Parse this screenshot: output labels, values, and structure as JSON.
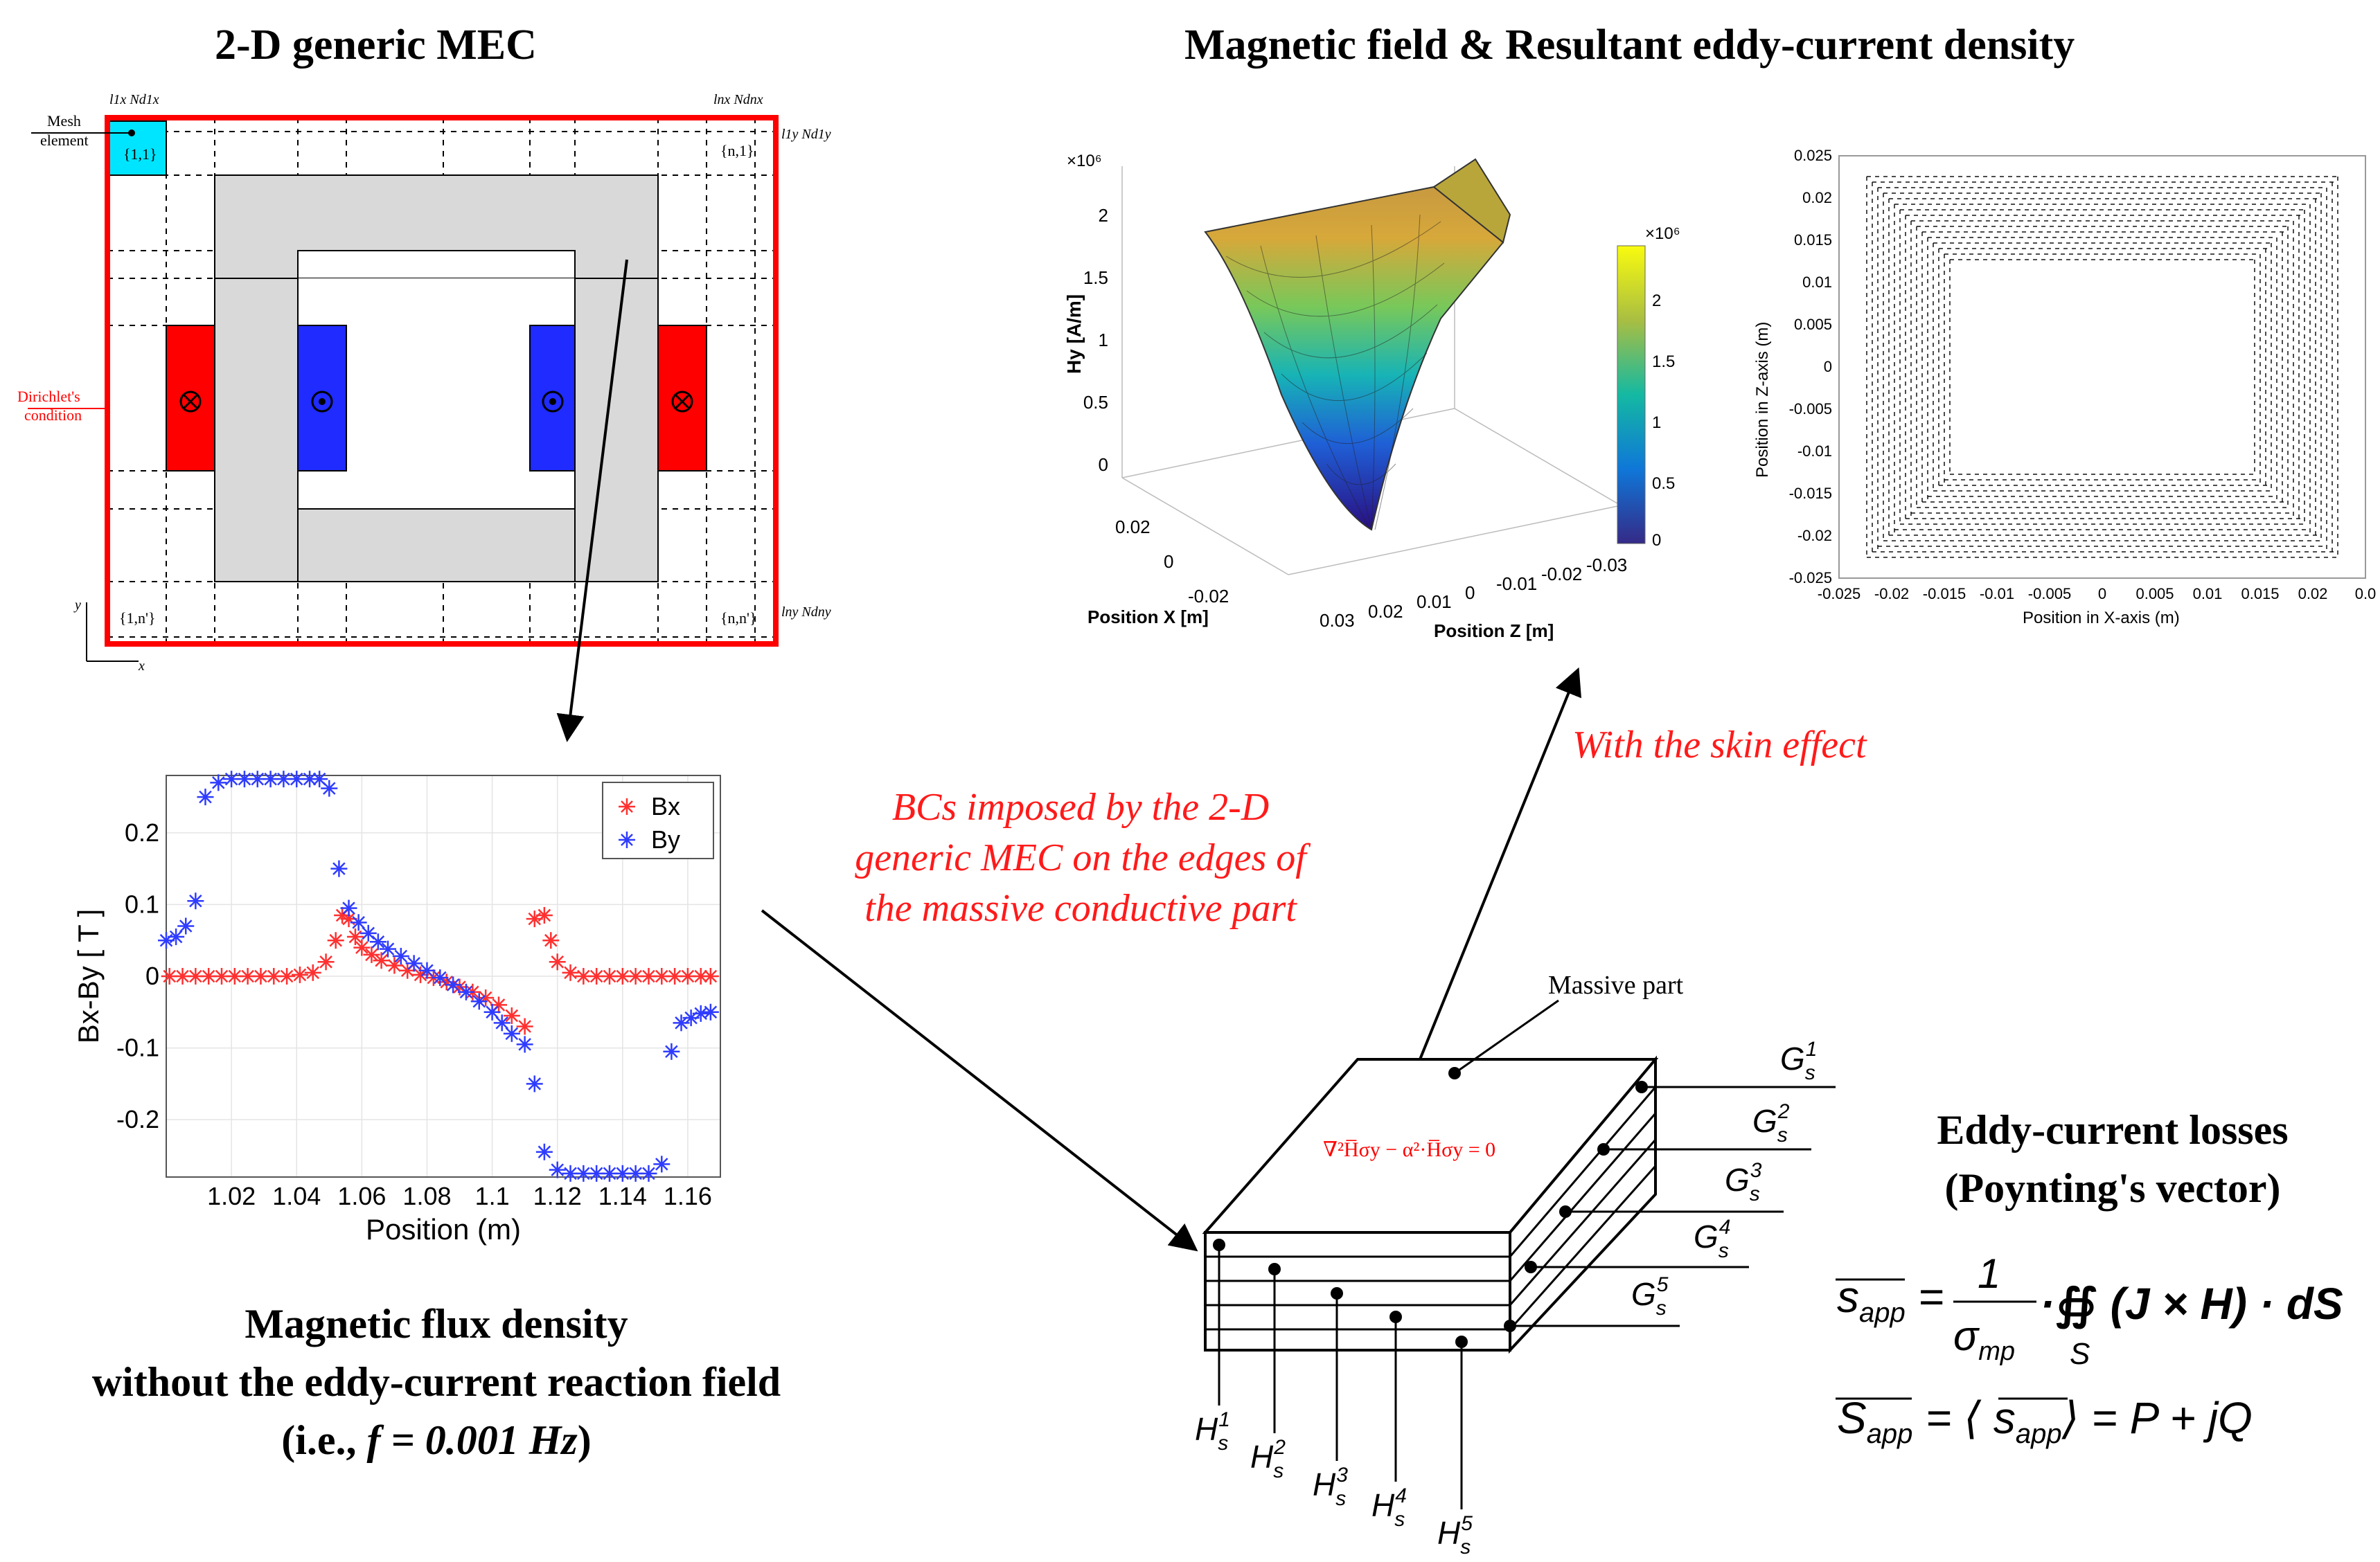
{
  "mec": {
    "title": "2-D generic MEC",
    "mesh_label_1": "Mesh",
    "mesh_label_2": "element",
    "dirichlet_1": "Dirichlet's",
    "dirichlet_2": "condition",
    "cell_11": "{1,1}",
    "cell_n1": "{n,1}",
    "cell_1n": "{1,n'}",
    "cell_nn": "{n,n'}",
    "top_left_label": "l1x Nd1x",
    "top_right_label": "lnx Ndnx",
    "right_top_label": "l1y Nd1y",
    "right_bottom_label": "lny Ndny",
    "axis_y": "y",
    "axis_x": "x",
    "colors": {
      "border": "#ff0000",
      "iron": "#d9d9d9",
      "coil_red": "#ff0000",
      "coil_blue": "#1f2bff",
      "mesh_cell": "#00e5ff"
    }
  },
  "flux_plot": {
    "chart_data": {
      "type": "scatter",
      "xlabel": "Position (m)",
      "ylabel": "Bx-By [ T ]",
      "xlim": [
        1.0,
        1.17
      ],
      "ylim": [
        -0.28,
        0.28
      ],
      "x_ticks": [
        "1.02",
        "1.04",
        "1.06",
        "1.08",
        "1.1",
        "1.12",
        "1.14",
        "1.16"
      ],
      "y_ticks": [
        "0.2",
        "0.1",
        "0",
        "-0.1",
        "-0.2"
      ],
      "legend": [
        "Bx",
        "By"
      ],
      "series": [
        {
          "name": "Bx",
          "color": "#ff3030",
          "x": [
            1.001,
            1.005,
            1.009,
            1.013,
            1.017,
            1.021,
            1.025,
            1.029,
            1.033,
            1.037,
            1.041,
            1.045,
            1.049,
            1.052,
            1.054,
            1.056,
            1.058,
            1.06,
            1.063,
            1.066,
            1.07,
            1.074,
            1.078,
            1.082,
            1.086,
            1.09,
            1.094,
            1.098,
            1.102,
            1.106,
            1.11,
            1.113,
            1.116,
            1.118,
            1.12,
            1.124,
            1.128,
            1.132,
            1.136,
            1.14,
            1.144,
            1.148,
            1.152,
            1.156,
            1.16,
            1.164,
            1.167
          ],
          "y": [
            0,
            0,
            0,
            0,
            0,
            0,
            0,
            0,
            0,
            0,
            0.002,
            0.005,
            0.02,
            0.05,
            0.085,
            0.08,
            0.055,
            0.04,
            0.03,
            0.022,
            0.015,
            0.008,
            0.002,
            -0.002,
            -0.008,
            -0.015,
            -0.022,
            -0.03,
            -0.04,
            -0.055,
            -0.07,
            0.08,
            0.085,
            0.05,
            0.02,
            0.005,
            0,
            0,
            0,
            0,
            0,
            0,
            0,
            0,
            0,
            0,
            0
          ]
        },
        {
          "name": "By",
          "color": "#2f3cff",
          "x": [
            1.0,
            1.003,
            1.006,
            1.009,
            1.012,
            1.016,
            1.02,
            1.024,
            1.028,
            1.032,
            1.036,
            1.04,
            1.044,
            1.047,
            1.05,
            1.053,
            1.056,
            1.059,
            1.062,
            1.065,
            1.068,
            1.072,
            1.076,
            1.08,
            1.084,
            1.088,
            1.092,
            1.096,
            1.1,
            1.103,
            1.106,
            1.11,
            1.113,
            1.116,
            1.12,
            1.124,
            1.128,
            1.132,
            1.136,
            1.14,
            1.144,
            1.148,
            1.152,
            1.155,
            1.158,
            1.161,
            1.164,
            1.167
          ],
          "y": [
            0.05,
            0.055,
            0.07,
            0.105,
            0.25,
            0.27,
            0.275,
            0.275,
            0.275,
            0.275,
            0.275,
            0.275,
            0.275,
            0.275,
            0.262,
            0.15,
            0.095,
            0.075,
            0.06,
            0.048,
            0.038,
            0.028,
            0.018,
            0.008,
            -0.002,
            -0.012,
            -0.022,
            -0.035,
            -0.05,
            -0.065,
            -0.08,
            -0.095,
            -0.15,
            -0.245,
            -0.27,
            -0.275,
            -0.275,
            -0.275,
            -0.275,
            -0.275,
            -0.275,
            -0.275,
            -0.262,
            -0.105,
            -0.065,
            -0.058,
            -0.052,
            -0.05
          ]
        }
      ]
    },
    "caption_1": "Magnetic flux density",
    "caption_2": "without the eddy-current reaction field",
    "caption_3a": "(i.e., ",
    "caption_3b": "f = 0.001 Hz",
    "caption_3c": ")"
  },
  "field": {
    "title": "Magnetic field & Resultant eddy-current density",
    "surface": {
      "z_label": "Hy [A/m]",
      "scale": "×10⁶",
      "z_ticks": [
        "2",
        "1.5",
        "1",
        "0.5",
        "0"
      ],
      "x_label": "Position X [m]",
      "x_ticks": [
        "0.02",
        "0",
        "-0.02"
      ],
      "z_axis_label": "Position Z [m]",
      "zpos_ticks": [
        "0.03",
        "0.02",
        "0.01",
        "0",
        "-0.01",
        "-0.02",
        "-0.03"
      ],
      "colorbar_scale": "×10⁶",
      "colorbar_ticks": [
        "2",
        "1.5",
        "1",
        "0.5",
        "0"
      ]
    },
    "quiver": {
      "x_label": "Position in X-axis (m)",
      "y_label": "Position in Z-axis (m)",
      "x_ticks": [
        "-0.025",
        "-0.02",
        "-0.015",
        "-0.01",
        "-0.005",
        "0",
        "0.005",
        "0.01",
        "0.015",
        "0.02",
        "0.0"
      ],
      "y_ticks": [
        "0.025",
        "0.02",
        "0.015",
        "0.01",
        "0.005",
        "0",
        "-0.005",
        "-0.01",
        "-0.015",
        "-0.02",
        "-0.025"
      ]
    }
  },
  "bc_text": [
    "BCs imposed by the 2-D",
    "generic MEC on the edges of",
    "the massive conductive part"
  ],
  "skin_text": "With the skin effect",
  "massive": {
    "label": "Massive part",
    "equation": "∇²H̅σy − α²·H̅σy = 0",
    "g_base": "G",
    "g_labels": [
      "1",
      "2",
      "3",
      "4",
      "5"
    ],
    "h_base": "H",
    "h_labels": [
      "1",
      "2",
      "3",
      "4",
      "5"
    ],
    "sub": "s"
  },
  "losses": {
    "title_1": "Eddy-current losses",
    "title_2": "(Poynting's vector)",
    "eq1_lhs": "s",
    "eq1_lhs_sub": "app",
    "eq1_num": "1",
    "eq1_den": "σ",
    "eq1_den_sub": "mp",
    "eq1_rhs": "·∯ (J × H) · dS",
    "eq1_int_sub": "S",
    "eq2_lhs": "S",
    "eq2_lhs_sub": "app",
    "eq2_rhs": "= ⟨ s",
    "eq2_rhs_sub": "app",
    "eq2_tail": "⟩ = P + jQ"
  }
}
